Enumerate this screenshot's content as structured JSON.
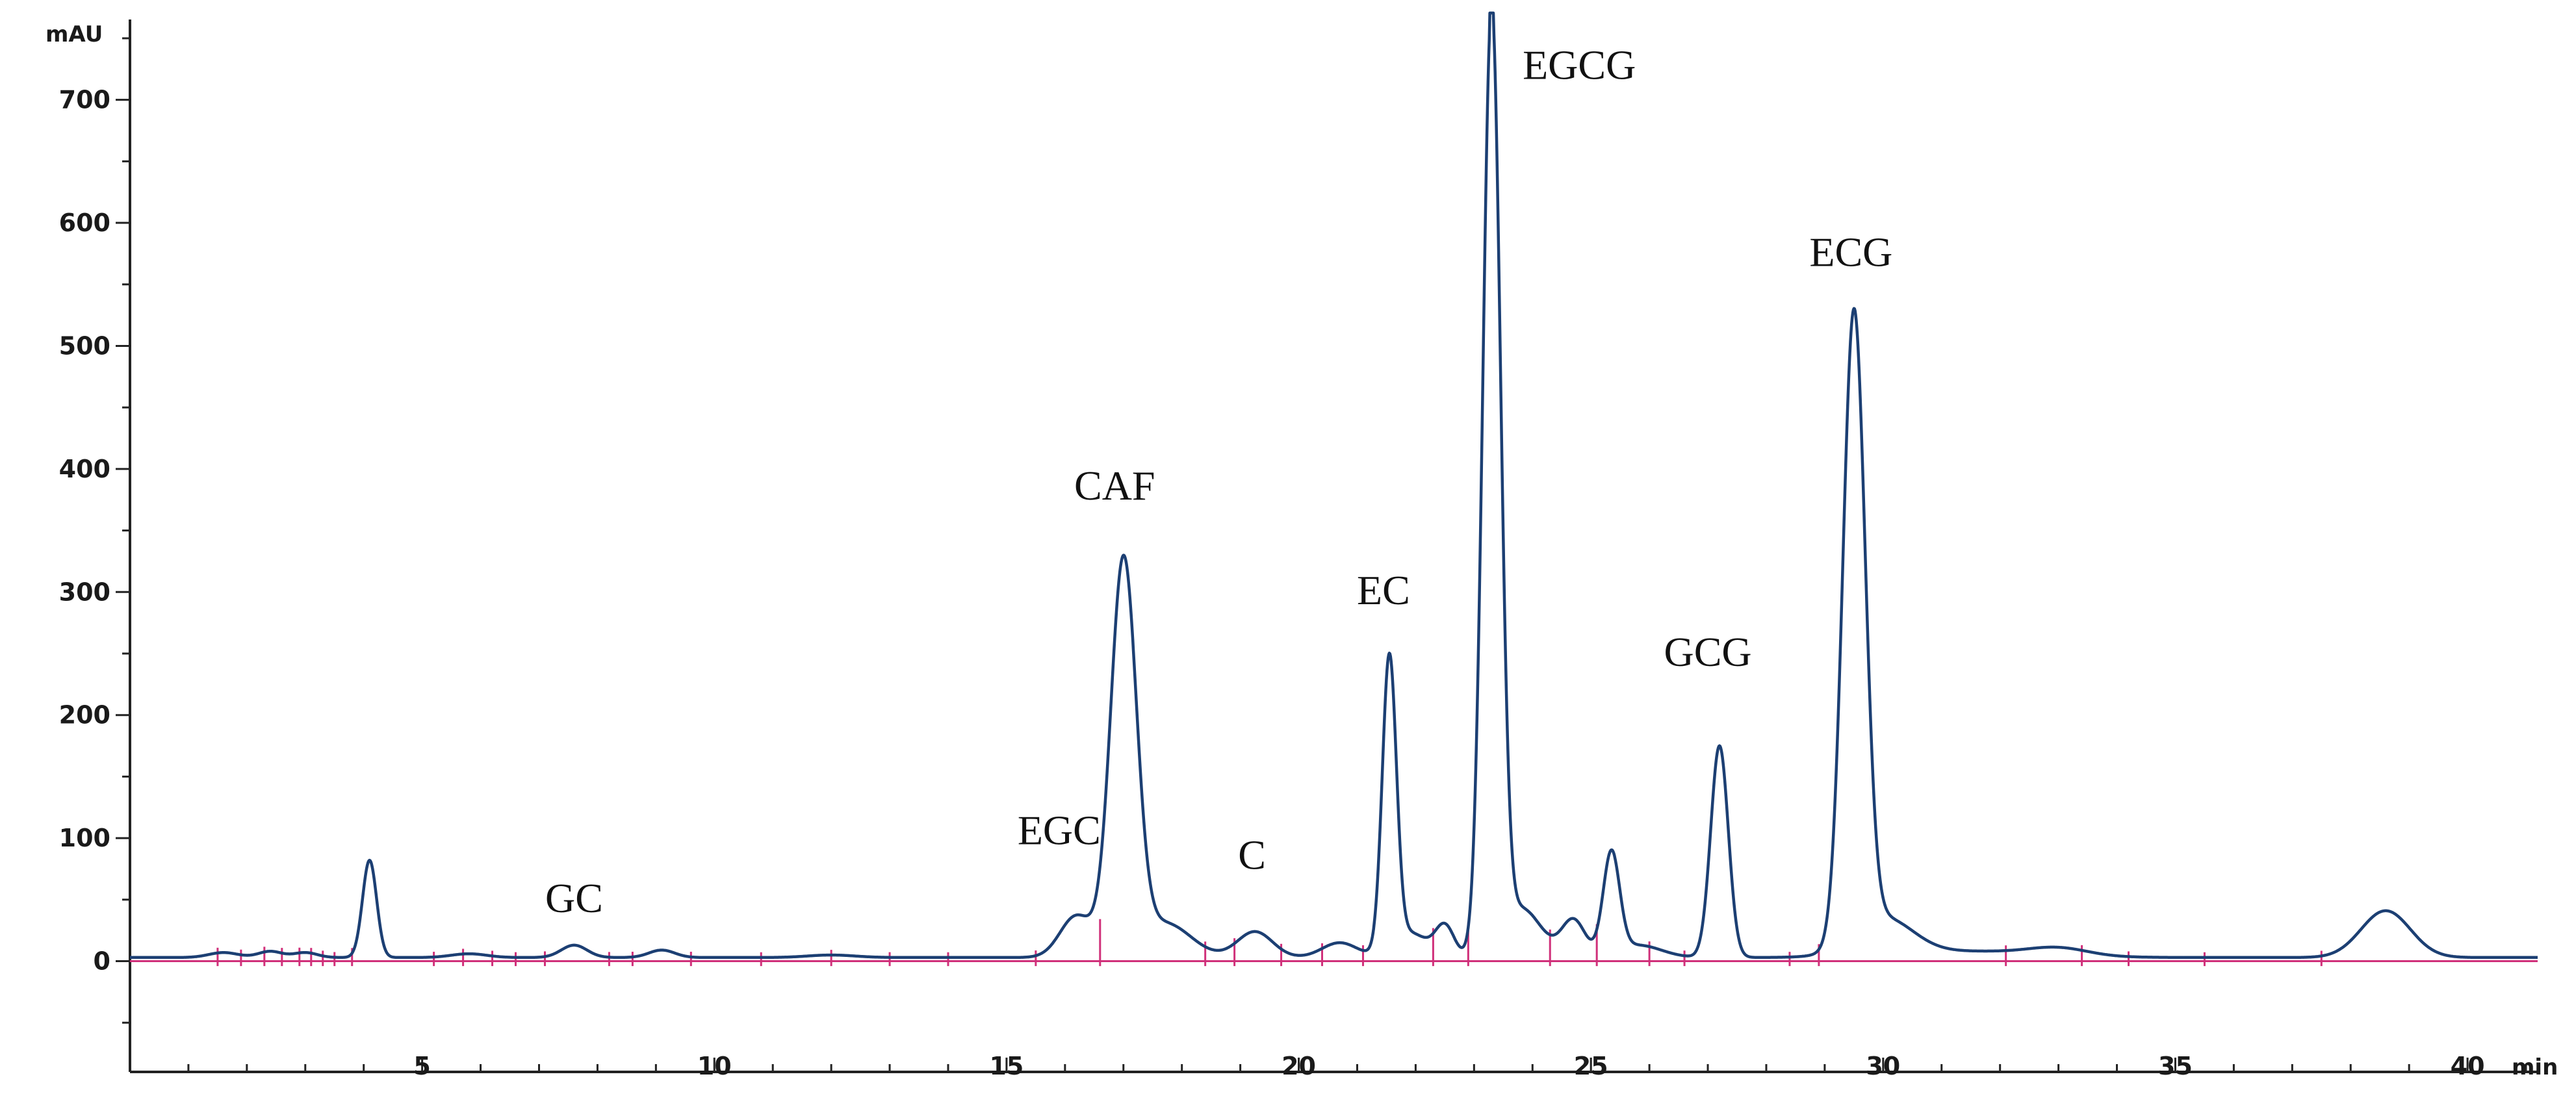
{
  "chart_data": {
    "type": "line",
    "title": "",
    "xlabel": "min",
    "ylabel": "mAU",
    "xlim": [
      0,
      41.2
    ],
    "ylim": [
      -90,
      760
    ],
    "x_ticks": [
      5,
      10,
      15,
      20,
      25,
      30,
      35,
      40
    ],
    "x_tick_labels": [
      "5",
      "10",
      "15",
      "20",
      "25",
      "30",
      "35",
      "40"
    ],
    "y_ticks": [
      0,
      100,
      200,
      300,
      400,
      500,
      600,
      700
    ],
    "y_tick_labels": [
      "0",
      "100",
      "200",
      "300",
      "400",
      "500",
      "600",
      "700"
    ],
    "grid": false,
    "legend": "none",
    "colors": {
      "trace": "#1c3f73",
      "baseline": "#d0307a",
      "axis": "#222222"
    },
    "baseline_value": 0,
    "offset": 3,
    "peaks": [
      {
        "x": 1.6,
        "y": 4,
        "w": 0.25
      },
      {
        "x": 2.4,
        "y": 5,
        "w": 0.2
      },
      {
        "x": 3.0,
        "y": 4,
        "w": 0.2
      },
      {
        "x": 4.1,
        "y": 79,
        "w": 0.12
      },
      {
        "x": 5.8,
        "y": 3,
        "w": 0.3
      },
      {
        "x": 7.6,
        "y": 10,
        "w": 0.22
      },
      {
        "x": 9.1,
        "y": 6,
        "w": 0.22
      },
      {
        "x": 12.0,
        "y": 2,
        "w": 0.4
      },
      {
        "x": 16.2,
        "y": 34,
        "w": 0.28
      },
      {
        "x": 17.0,
        "y": 318,
        "w": 0.22
      },
      {
        "x": 17.7,
        "y": 28,
        "w": 0.45
      },
      {
        "x": 19.25,
        "y": 21,
        "w": 0.3
      },
      {
        "x": 20.7,
        "y": 12,
        "w": 0.3
      },
      {
        "x": 21.55,
        "y": 237,
        "w": 0.12
      },
      {
        "x": 21.9,
        "y": 20,
        "w": 0.3
      },
      {
        "x": 22.5,
        "y": 25,
        "w": 0.16
      },
      {
        "x": 23.3,
        "y": 760,
        "w": 0.15
      },
      {
        "x": 23.8,
        "y": 40,
        "w": 0.35
      },
      {
        "x": 24.7,
        "y": 30,
        "w": 0.2
      },
      {
        "x": 25.35,
        "y": 82,
        "w": 0.14
      },
      {
        "x": 25.8,
        "y": 10,
        "w": 0.4
      },
      {
        "x": 27.2,
        "y": 172,
        "w": 0.15
      },
      {
        "x": 29.5,
        "y": 508,
        "w": 0.19
      },
      {
        "x": 30.0,
        "y": 30,
        "w": 0.5
      },
      {
        "x": 31.5,
        "y": 5,
        "w": 1.2
      },
      {
        "x": 33.0,
        "y": 6,
        "w": 0.5
      },
      {
        "x": 38.6,
        "y": 38,
        "w": 0.42
      }
    ],
    "integration_marks": [
      1.5,
      1.9,
      2.3,
      2.6,
      2.9,
      3.1,
      3.3,
      3.5,
      3.8,
      5.2,
      5.7,
      6.2,
      6.6,
      7.1,
      8.2,
      8.6,
      9.6,
      10.8,
      12.0,
      13.0,
      14.0,
      15.5,
      16.6,
      18.4,
      18.9,
      19.7,
      20.4,
      21.1,
      22.3,
      22.9,
      24.3,
      25.1,
      26.0,
      26.6,
      28.4,
      28.9,
      32.1,
      33.4,
      34.2,
      35.5,
      37.5
    ],
    "annotations": [
      {
        "text": "GC",
        "x": 7.6,
        "y": 40
      },
      {
        "text": "EGC",
        "x": 15.9,
        "y": 95
      },
      {
        "text": "CAF",
        "x": 16.85,
        "y": 375
      },
      {
        "text": "C",
        "x": 19.2,
        "y": 75
      },
      {
        "text": "EC",
        "x": 21.45,
        "y": 290
      },
      {
        "text": "EGCG",
        "x": 24.8,
        "y": 717
      },
      {
        "text": "GCG",
        "x": 27.0,
        "y": 240
      },
      {
        "text": "ECG",
        "x": 29.45,
        "y": 565
      }
    ]
  }
}
